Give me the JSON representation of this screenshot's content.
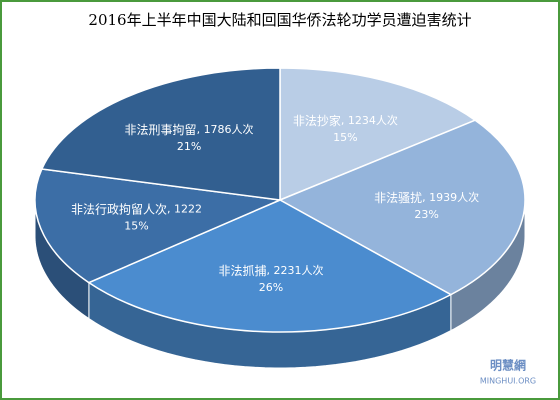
{
  "chart_data": {
    "type": "pie3d",
    "title": "2016年上半年中国大陆和回国华侨法轮功学员遭迫害统计",
    "categories": [
      "非法抄家",
      "非法骚扰",
      "非法抓捕",
      "非法行政拘留人次",
      "非法刑事拘留"
    ],
    "values": [
      1234,
      1939,
      2231,
      1222,
      1786
    ],
    "value_labels": [
      "1234人次",
      "1939人次",
      "2231人次",
      "1222",
      "1786人次"
    ],
    "percentages": [
      15,
      23,
      26,
      15,
      21
    ],
    "percentage_labels": [
      "15%",
      "23%",
      "26%",
      "15%",
      "21%"
    ],
    "label_separator": ", ",
    "colors": [
      "#b9cde6",
      "#94b4db",
      "#4b8ccf",
      "#3c6ea6",
      "#325f90"
    ],
    "watermark": [
      "明慧網",
      "MINGHUI.ORG"
    ]
  }
}
